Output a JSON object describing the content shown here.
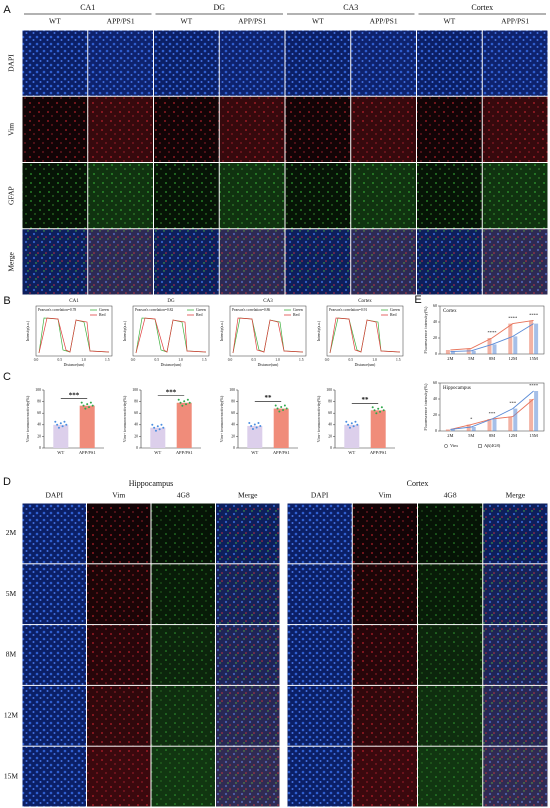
{
  "panel_a": {
    "label": "A",
    "groups": [
      "CA1",
      "DG",
      "CA3",
      "Cortex"
    ],
    "conditions": [
      "WT",
      "APP/PS1"
    ],
    "rows": [
      "DAPI",
      "Vim",
      "GFAP",
      "Merge"
    ]
  },
  "panel_b": {
    "label": "B",
    "y_label": "Intensity(a.u.)",
    "x_label": "Distance(um)",
    "legend": [
      "Green",
      "Red"
    ],
    "xticks": [
      "0.0",
      "0.5",
      "1.0",
      "1.5"
    ],
    "charts": [
      {
        "title": "CA1",
        "correlation": "Pearson's correlation=0.78"
      },
      {
        "title": "DG",
        "correlation": "Pearson's correlation=0.82"
      },
      {
        "title": "CA3",
        "correlation": "Pearson's correlation=0.86"
      },
      {
        "title": "Cortex",
        "correlation": "Pearson's correlation=0.91"
      }
    ]
  },
  "panel_c": {
    "label": "C",
    "type": "bar",
    "y_label": "Vim+ immunoreactivity(%)",
    "categories": [
      "WT",
      "APP/PS1"
    ],
    "colors": [
      "#dccfeb",
      "#f08c7a"
    ],
    "ylim": [
      0,
      100
    ],
    "yticks": [
      0,
      20,
      40,
      60,
      80,
      100
    ],
    "charts": [
      {
        "values": [
          40,
          73
        ],
        "significance": "***"
      },
      {
        "values": [
          35,
          78
        ],
        "significance": "***"
      },
      {
        "values": [
          38,
          68
        ],
        "significance": "**"
      },
      {
        "values": [
          40,
          65
        ],
        "significance": "**"
      }
    ]
  },
  "panel_d": {
    "label": "D",
    "regions": [
      "Hippocampus",
      "Cortex"
    ],
    "channels": [
      "DAPI",
      "Vim",
      "4G8",
      "Merge"
    ],
    "timepoints": [
      "2M",
      "5M",
      "8M",
      "12M",
      "15M"
    ]
  },
  "panel_e": {
    "label": "E",
    "type": "line",
    "y_label": "Fluorescence intensity(%)",
    "categories": [
      "2M",
      "5M",
      "8M",
      "12M",
      "15M"
    ],
    "charts": [
      {
        "title": "Cortex",
        "ylim": [
          0,
          60
        ],
        "yticks": [
          0,
          20,
          40,
          60
        ],
        "significance": [
          null,
          null,
          "****",
          "****",
          "****"
        ],
        "series": [
          {
            "name": "Vim",
            "color": "#e8735a",
            "values": [
              5,
              7,
              20,
              38,
              42
            ]
          },
          {
            "name": "Aβ(4G8)",
            "color": "#5b8bd6",
            "values": [
              3,
              4,
              12,
              22,
              38
            ]
          }
        ]
      },
      {
        "title": "Hippocampus",
        "ylim": [
          0,
          60
        ],
        "yticks": [
          0,
          20,
          40,
          60
        ],
        "significance": [
          null,
          "*",
          "***",
          "***",
          "****"
        ],
        "series": [
          {
            "name": "Vim",
            "color": "#e8735a",
            "values": [
              2,
              8,
              15,
              18,
              40
            ]
          },
          {
            "name": "Aβ(4G8)",
            "color": "#5b8bd6",
            "values": [
              2,
              5,
              15,
              28,
              50
            ]
          }
        ]
      }
    ]
  }
}
